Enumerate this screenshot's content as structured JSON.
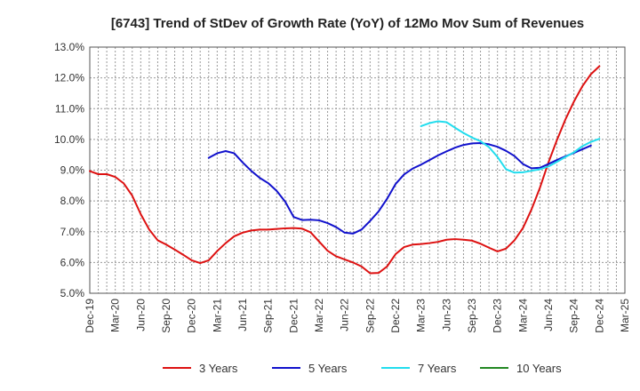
{
  "chart_data": {
    "type": "line",
    "title": "[6743]  Trend of StDev of Growth Rate (YoY) of 12Mo Mov Sum of Revenues",
    "xlabel": "",
    "ylabel": "",
    "ylim": [
      5.0,
      13.0
    ],
    "y_ticks": [
      "5.0%",
      "6.0%",
      "7.0%",
      "8.0%",
      "9.0%",
      "10.0%",
      "11.0%",
      "12.0%",
      "13.0%"
    ],
    "y_tick_values": [
      5,
      6,
      7,
      8,
      9,
      10,
      11,
      12,
      13
    ],
    "x_ticks": [
      "Dec-19",
      "Mar-20",
      "Jun-20",
      "Sep-20",
      "Dec-20",
      "Mar-21",
      "Jun-21",
      "Sep-21",
      "Dec-21",
      "Mar-22",
      "Jun-22",
      "Sep-22",
      "Dec-22",
      "Mar-23",
      "Jun-23",
      "Sep-23",
      "Dec-23",
      "Mar-24",
      "Jun-24",
      "Sep-24",
      "Dec-24",
      "Mar-25"
    ],
    "x_tick_index": [
      0,
      3,
      6,
      9,
      12,
      15,
      18,
      21,
      24,
      27,
      30,
      33,
      36,
      39,
      42,
      45,
      48,
      51,
      54,
      57,
      60,
      63
    ],
    "x_range": [
      0,
      63
    ],
    "grid": true,
    "legend_position": "bottom",
    "series": [
      {
        "name": "3 Years",
        "color": "#dd1111",
        "start_index": 0,
        "values": [
          8.97,
          8.87,
          8.87,
          8.78,
          8.57,
          8.17,
          7.57,
          7.07,
          6.72,
          6.58,
          6.42,
          6.25,
          6.07,
          5.98,
          6.07,
          6.37,
          6.63,
          6.85,
          6.97,
          7.04,
          7.07,
          7.07,
          7.09,
          7.11,
          7.12,
          7.1,
          6.98,
          6.68,
          6.38,
          6.2,
          6.1,
          6.0,
          5.87,
          5.65,
          5.66,
          5.87,
          6.27,
          6.5,
          6.58,
          6.6,
          6.63,
          6.67,
          6.74,
          6.76,
          6.74,
          6.71,
          6.61,
          6.48,
          6.36,
          6.45,
          6.72,
          7.12,
          7.72,
          8.43,
          9.25,
          9.98,
          10.65,
          11.23,
          11.73,
          12.12,
          12.38
        ]
      },
      {
        "name": "5 Years",
        "color": "#1111cc",
        "start_index": 14,
        "values": [
          9.4,
          9.55,
          9.62,
          9.55,
          9.25,
          8.98,
          8.75,
          8.58,
          8.33,
          7.98,
          7.48,
          7.38,
          7.39,
          7.37,
          7.28,
          7.15,
          6.97,
          6.94,
          7.07,
          7.35,
          7.66,
          8.07,
          8.55,
          8.86,
          9.05,
          9.18,
          9.33,
          9.48,
          9.61,
          9.73,
          9.82,
          9.87,
          9.88,
          9.84,
          9.76,
          9.63,
          9.46,
          9.2,
          9.06,
          9.08,
          9.2,
          9.33,
          9.45,
          9.56,
          9.68,
          9.8
        ]
      },
      {
        "name": "7 Years",
        "color": "#22ddee",
        "start_index": 39,
        "values": [
          10.43,
          10.53,
          10.59,
          10.56,
          10.38,
          10.21,
          10.06,
          9.94,
          9.75,
          9.43,
          9.03,
          8.92,
          8.93,
          8.98,
          9.03,
          9.12,
          9.27,
          9.43,
          9.58,
          9.78,
          9.92,
          10.02
        ]
      },
      {
        "name": "10 Years",
        "color": "#228822",
        "start_index": 0,
        "values": []
      }
    ]
  }
}
